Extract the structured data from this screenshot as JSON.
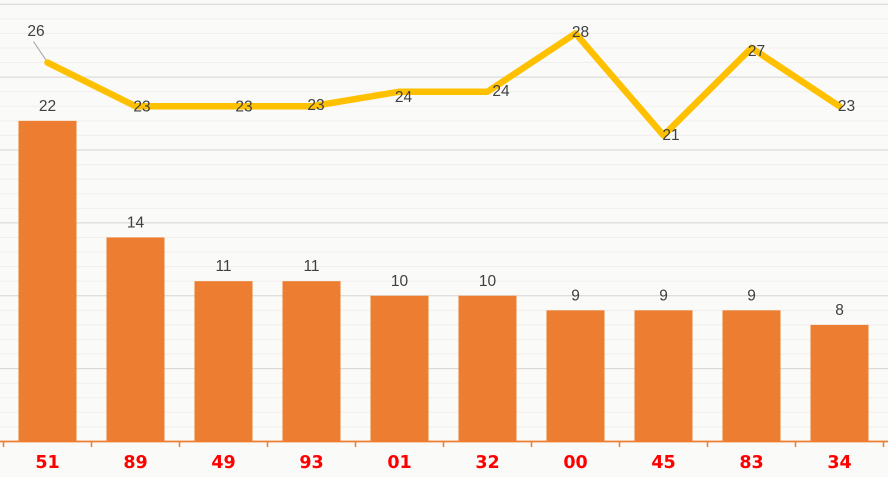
{
  "chart_data": {
    "type": "bar",
    "categories": [
      "51",
      "89",
      "49",
      "93",
      "01",
      "32",
      "00",
      "45",
      "83",
      "34"
    ],
    "series": [
      {
        "name": "bar-series",
        "type": "bar",
        "values": [
          22,
          14,
          11,
          11,
          10,
          10,
          9,
          9,
          9,
          8
        ]
      },
      {
        "name": "line-series",
        "type": "line",
        "values": [
          26,
          23,
          23,
          23,
          24,
          24,
          28,
          21,
          27,
          23
        ]
      }
    ],
    "title": "",
    "xlabel": "",
    "ylabel": "",
    "ylim": [
      0,
      30
    ],
    "grid": "horizontal, minor every 1 unit, major every 5 units",
    "legend": "none",
    "data_labels": "shown for both series",
    "first_line_label_leader_line": true
  },
  "colors": {
    "background": "#FAFAF8",
    "bar": "#ED7D31",
    "line": "#FFC000",
    "axis": "#ED7D31",
    "grid_major": "#D6D4D2",
    "grid_minor": "#F1EFED",
    "data_label": "#404040",
    "category_label": "#FF0000",
    "leader_line": "#A6A6A6"
  }
}
